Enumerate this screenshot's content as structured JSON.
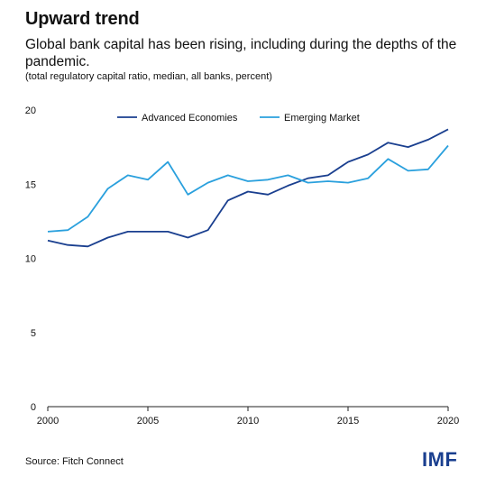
{
  "header": {
    "title": "Upward trend",
    "subtitle": "Global bank capital has been rising, including during the depths of the pandemic.",
    "note": "(total regulatory capital ratio, median, all banks, percent)"
  },
  "footer": {
    "source": "Source: Fitch Connect",
    "logo_text": "IMF"
  },
  "chart_data": {
    "type": "line",
    "x": [
      2000,
      2001,
      2002,
      2003,
      2004,
      2005,
      2006,
      2007,
      2008,
      2009,
      2010,
      2011,
      2012,
      2013,
      2014,
      2015,
      2016,
      2017,
      2018,
      2019,
      2020
    ],
    "series": [
      {
        "name": "Advanced Economies",
        "color": "#1a3f8f",
        "values": [
          11.2,
          10.9,
          10.8,
          11.4,
          11.8,
          11.8,
          11.8,
          11.4,
          11.9,
          13.9,
          14.5,
          14.3,
          14.9,
          15.4,
          15.6,
          16.5,
          17.0,
          17.8,
          17.5,
          18.0,
          18.7
        ]
      },
      {
        "name": "Emerging Market",
        "color": "#2aa0dd",
        "values": [
          11.8,
          11.9,
          12.8,
          14.7,
          15.6,
          15.3,
          16.5,
          14.3,
          15.1,
          15.6,
          15.2,
          15.3,
          15.6,
          15.1,
          15.2,
          15.1,
          15.4,
          16.7,
          15.9,
          16.0,
          17.6
        ]
      }
    ],
    "xticks": [
      "2000",
      "2005",
      "2010",
      "2015",
      "2020"
    ],
    "yticks": [
      "0",
      "5",
      "10",
      "15",
      "20"
    ],
    "xlim": [
      2000,
      2020
    ],
    "ylim": [
      0,
      20
    ],
    "grid": false,
    "legend": "top"
  }
}
